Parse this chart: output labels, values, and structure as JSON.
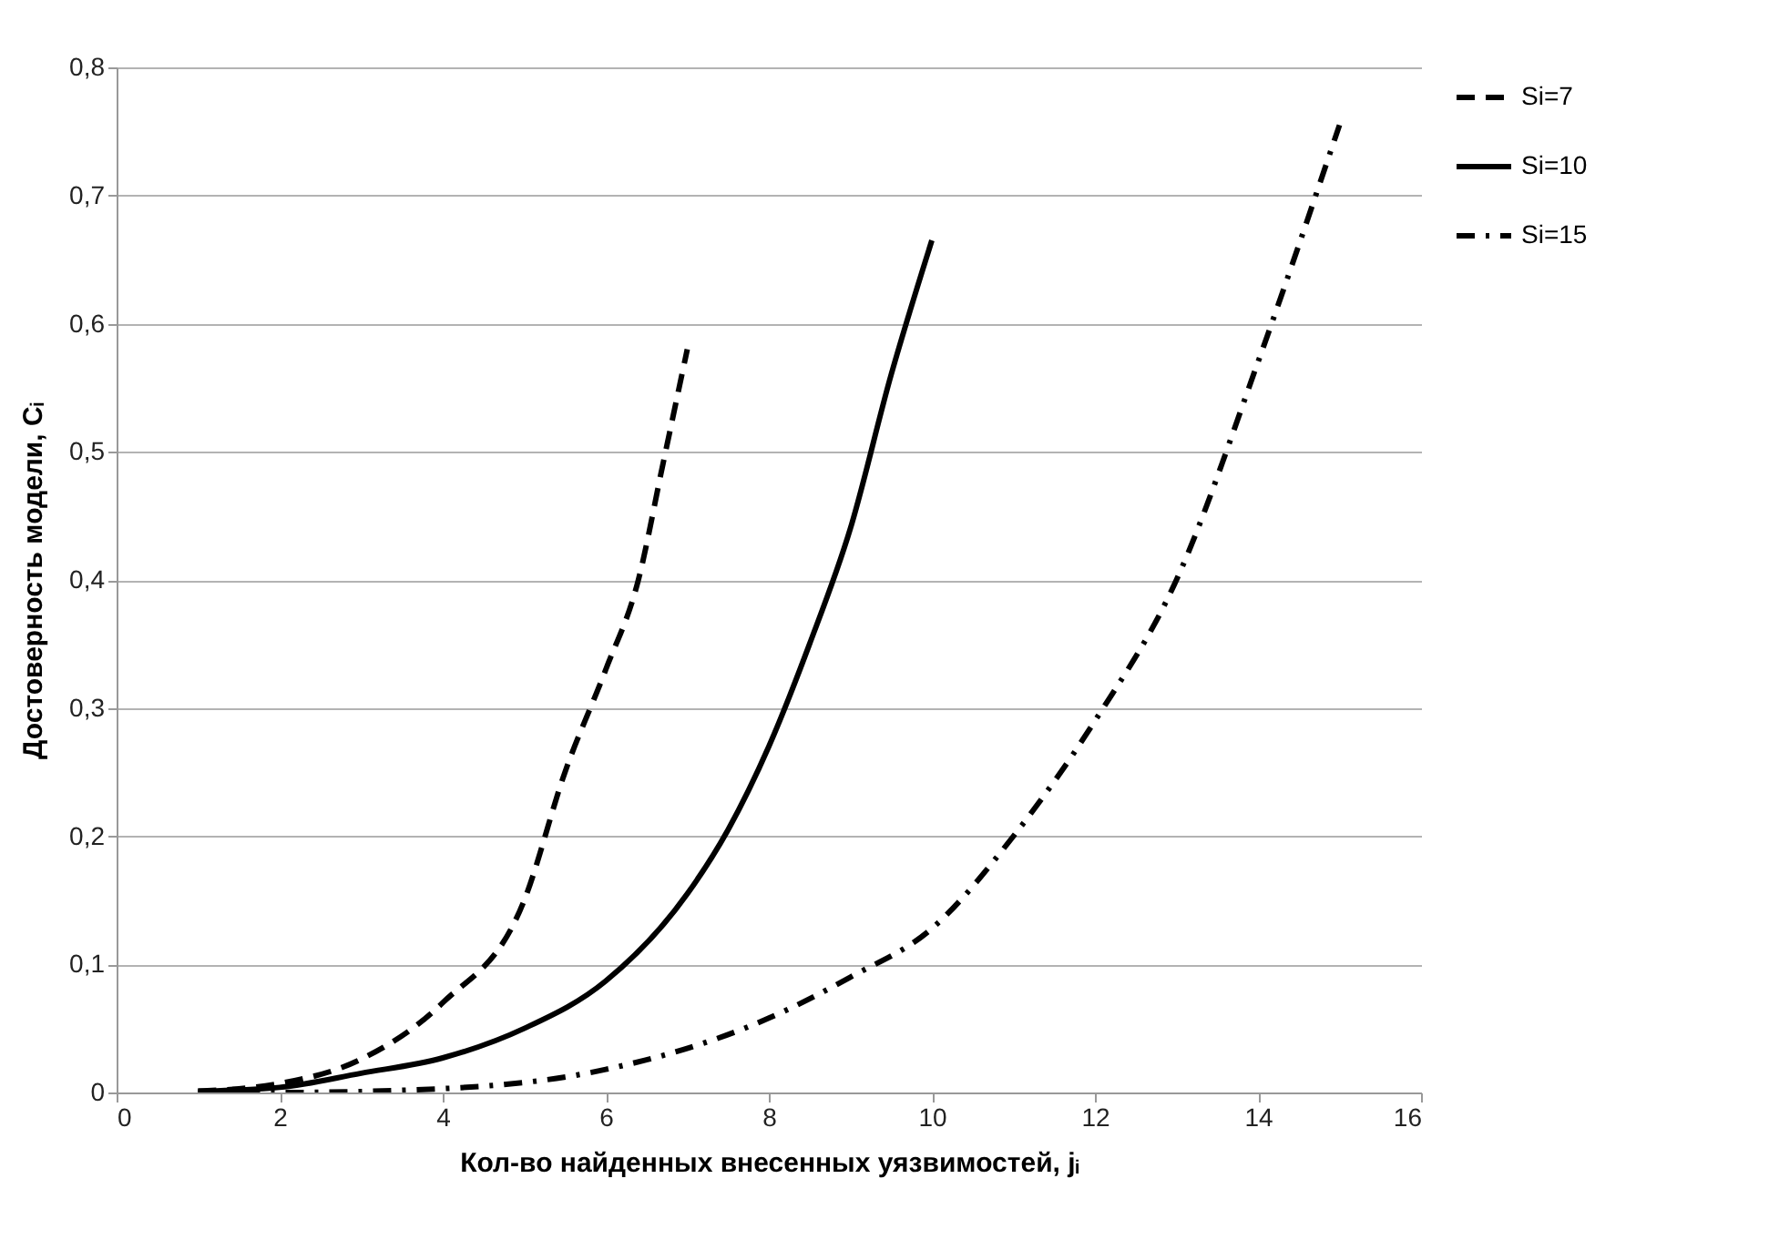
{
  "chart_data": {
    "type": "line",
    "xlabel": "Кол-во найденных внесенных уязвимостей, jᵢ",
    "ylabel": "Достоверность модели, Cᵢ",
    "xlim": [
      0,
      16
    ],
    "xticks": [
      0,
      2,
      4,
      6,
      8,
      10,
      12,
      14,
      16
    ],
    "ylim": [
      0,
      0.8
    ],
    "yticks": [
      0,
      {
        "value": 0.1,
        "label": "0,1"
      },
      {
        "value": 0.2,
        "label": "0,2"
      },
      {
        "value": 0.3,
        "label": "0,3"
      },
      {
        "value": 0.4,
        "label": "0,4"
      },
      {
        "value": 0.5,
        "label": "0,5"
      },
      {
        "value": 0.6,
        "label": "0,6"
      },
      {
        "value": 0.7,
        "label": "0,7"
      },
      {
        "value": 0.8,
        "label": "0,8"
      }
    ],
    "grid": "y",
    "legend": "right",
    "marker": "none",
    "series": [
      {
        "name": "Si=7",
        "color": "#000000",
        "line_style": "dashed",
        "x": [
          1,
          2,
          3,
          4,
          5,
          5.5,
          6,
          6.4,
          6.7,
          7
        ],
        "values": [
          0.001,
          0.007,
          0.026,
          0.07,
          0.15,
          0.25,
          0.33,
          0.4,
          0.49,
          0.58
        ]
      },
      {
        "name": "Si=10",
        "color": "#000000",
        "line_style": "solid",
        "x": [
          1,
          2,
          3,
          4,
          5,
          6,
          7,
          7.5,
          8,
          8.5,
          9,
          9.5,
          10
        ],
        "values": [
          0.001,
          0.004,
          0.015,
          0.027,
          0.05,
          0.087,
          0.155,
          0.205,
          0.27,
          0.35,
          0.44,
          0.56,
          0.665
        ]
      },
      {
        "name": "Si=15",
        "color": "#000000",
        "line_style": "dashdot",
        "x": [
          1,
          2,
          4,
          6,
          8,
          9,
          10,
          11,
          12,
          13,
          14,
          15
        ],
        "values": [
          0,
          0,
          0.003,
          0.018,
          0.058,
          0.09,
          0.128,
          0.2,
          0.29,
          0.4,
          0.57,
          0.755
        ]
      }
    ]
  }
}
